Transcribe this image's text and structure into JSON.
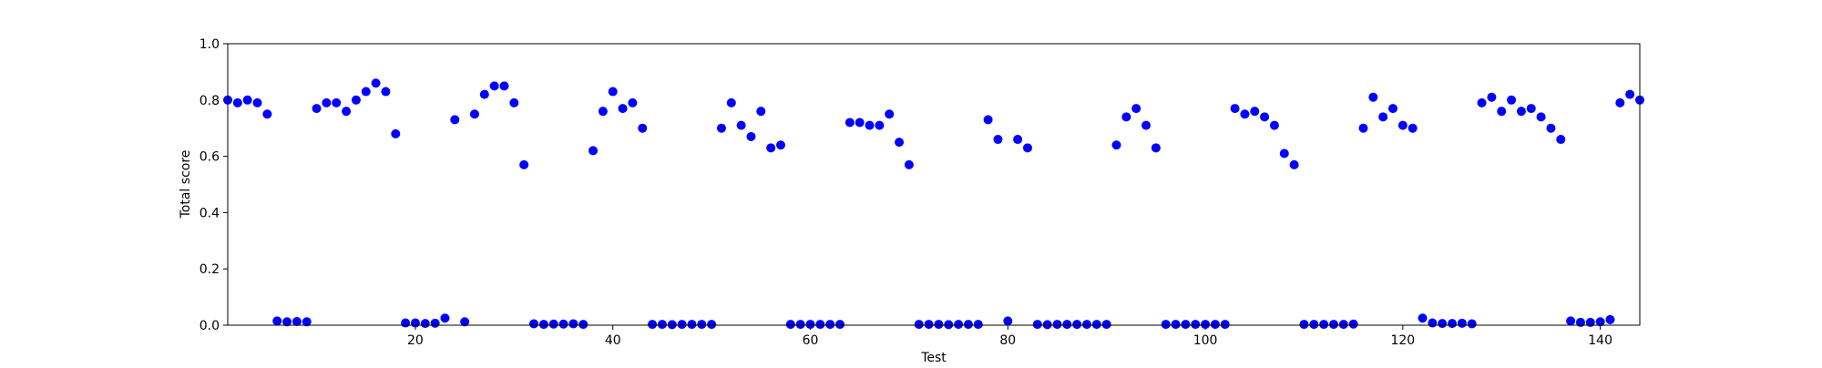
{
  "chart_data": {
    "type": "scatter",
    "title": "",
    "xlabel": "Test",
    "ylabel": "Total score",
    "xlim": [
      1,
      144
    ],
    "ylim": [
      0,
      1.0
    ],
    "x_ticks": [
      20,
      40,
      60,
      80,
      100,
      120,
      140
    ],
    "y_ticks": [
      0.0,
      0.2,
      0.4,
      0.6,
      0.8,
      1.0
    ],
    "x_tick_labels": [
      "20",
      "40",
      "60",
      "80",
      "100",
      "120",
      "140"
    ],
    "y_tick_labels": [
      "0.0",
      "0.2",
      "0.4",
      "0.6",
      "0.8",
      "1.0"
    ],
    "grid": false,
    "marker_color": "#0000ff",
    "series": [
      {
        "x": [
          1,
          2,
          3,
          4,
          5,
          6,
          7,
          8,
          9,
          10,
          11,
          12,
          13,
          14,
          15,
          16,
          17,
          18,
          19,
          20,
          21,
          22,
          23,
          24,
          25,
          26,
          27,
          28,
          29,
          30,
          31,
          32,
          33,
          34,
          35,
          36,
          37,
          38,
          39,
          40,
          41,
          42,
          43,
          44,
          45,
          46,
          47,
          48,
          49,
          50,
          51,
          52,
          53,
          54,
          55,
          56,
          57,
          58,
          59,
          60,
          61,
          62,
          63,
          64,
          65,
          66,
          67,
          68,
          69,
          70,
          71,
          72,
          73,
          74,
          75,
          76,
          77,
          78,
          79,
          80,
          81,
          82,
          83,
          84,
          85,
          86,
          87,
          88,
          89,
          90,
          91,
          92,
          93,
          94,
          95,
          96,
          97,
          98,
          99,
          100,
          101,
          102,
          103,
          104,
          105,
          106,
          107,
          108,
          109,
          110,
          111,
          112,
          113,
          114,
          115,
          116,
          117,
          118,
          119,
          120,
          121,
          122,
          123,
          124,
          125,
          126,
          127,
          128,
          129,
          130,
          131,
          132,
          133,
          134,
          135,
          136,
          137,
          138,
          139,
          140,
          141,
          142,
          143,
          144
        ],
        "y": [
          0.8,
          0.79,
          0.8,
          0.79,
          0.75,
          0.015,
          0.012,
          0.013,
          0.012,
          0.77,
          0.79,
          0.79,
          0.76,
          0.8,
          0.83,
          0.86,
          0.83,
          0.68,
          0.008,
          0.008,
          0.006,
          0.007,
          0.025,
          0.73,
          0.012,
          0.75,
          0.82,
          0.85,
          0.85,
          0.79,
          0.57,
          0.005,
          0.003,
          0.004,
          0.004,
          0.005,
          0.003,
          0.62,
          0.76,
          0.83,
          0.77,
          0.79,
          0.7,
          0.003,
          0.003,
          0.002,
          0.003,
          0.003,
          0.003,
          0.003,
          0.7,
          0.79,
          0.71,
          0.67,
          0.76,
          0.63,
          0.64,
          0.003,
          0.003,
          0.003,
          0.003,
          0.003,
          0.003,
          0.72,
          0.72,
          0.71,
          0.71,
          0.75,
          0.65,
          0.57,
          0.003,
          0.003,
          0.003,
          0.002,
          0.003,
          0.003,
          0.003,
          0.73,
          0.66,
          0.015,
          0.66,
          0.63,
          0.003,
          0.002,
          0.003,
          0.003,
          0.003,
          0.003,
          0.003,
          0.003,
          0.64,
          0.74,
          0.77,
          0.71,
          0.63,
          0.003,
          0.003,
          0.003,
          0.003,
          0.003,
          0.003,
          0.003,
          0.77,
          0.75,
          0.76,
          0.74,
          0.71,
          0.61,
          0.57,
          0.003,
          0.003,
          0.003,
          0.003,
          0.003,
          0.004,
          0.7,
          0.81,
          0.74,
          0.77,
          0.71,
          0.7,
          0.025,
          0.008,
          0.006,
          0.006,
          0.007,
          0.005,
          0.79,
          0.81,
          0.76,
          0.8,
          0.76,
          0.77,
          0.74,
          0.7,
          0.66,
          0.015,
          0.01,
          0.01,
          0.012,
          0.02,
          0.79,
          0.82,
          0.8
        ]
      }
    ]
  }
}
